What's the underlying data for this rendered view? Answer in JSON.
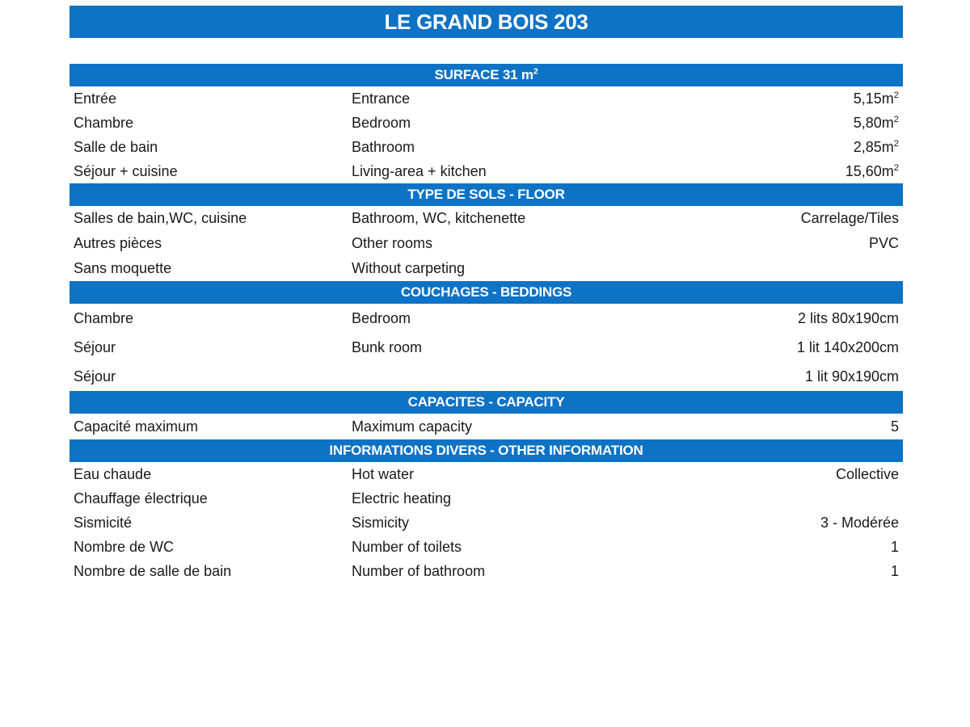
{
  "title": "LE GRAND BOIS 203",
  "accent_color": "#0e72c5",
  "text_color": "#1a1a1a",
  "sections": [
    {
      "header": "SURFACE 31 m",
      "header_sup": "2",
      "rows": [
        {
          "fr": "Entrée",
          "en": "Entrance",
          "value": "5,15m",
          "sup": "2"
        },
        {
          "fr": "Chambre",
          "en": "Bedroom",
          "value": "5,80m",
          "sup": "2"
        },
        {
          "fr": "Salle de bain",
          "en": "Bathroom",
          "value": "2,85m",
          "sup": "2"
        },
        {
          "fr": "Séjour + cuisine",
          "en": "Living-area + kitchen",
          "value": "15,60m",
          "sup": "2"
        }
      ]
    },
    {
      "header": "TYPE DE SOLS - FLOOR",
      "rows": [
        {
          "fr": "Salles de bain,WC, cuisine",
          "en": "Bathroom, WC, kitchenette",
          "value": "Carrelage/Tiles"
        },
        {
          "fr": "Autres pièces",
          "en": "Other rooms",
          "value": "PVC"
        },
        {
          "fr": "Sans moquette",
          "en": "Without carpeting",
          "value": ""
        }
      ]
    },
    {
      "header": "COUCHAGES - BEDDINGS",
      "rows": [
        {
          "fr": "Chambre",
          "en": "Bedroom",
          "value": "2 lits 80x190cm"
        },
        {
          "fr": "Séjour",
          "en": "Bunk room",
          "value": "1 lit 140x200cm"
        },
        {
          "fr": "Séjour",
          "en": "",
          "value": "1 lit 90x190cm"
        }
      ]
    },
    {
      "header": "CAPACITES - CAPACITY",
      "rows": [
        {
          "fr": "Capacité maximum",
          "en": "Maximum capacity",
          "value": "5"
        }
      ]
    },
    {
      "header": "INFORMATIONS DIVERS - OTHER INFORMATION",
      "rows": [
        {
          "fr": "Eau chaude",
          "en": "Hot water",
          "value": "Collective"
        },
        {
          "fr": "Chauffage électrique",
          "en": "Electric heating",
          "value": ""
        },
        {
          "fr": "Sismicité",
          "en": "Sismicity",
          "value": "3 - Modérée"
        },
        {
          "fr": "Nombre de WC",
          "en": "Number of toilets",
          "value": "1"
        },
        {
          "fr": "Nombre de salle de bain",
          "en": "Number of bathroom",
          "value": "1"
        }
      ]
    }
  ]
}
